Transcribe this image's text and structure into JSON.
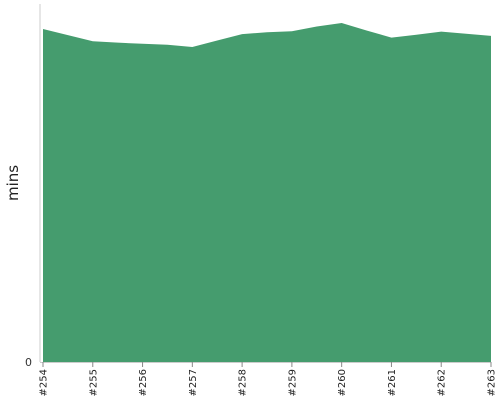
{
  "chart_data": {
    "type": "area",
    "title": "",
    "xlabel": "",
    "ylabel": "mins",
    "categories": [
      "#254",
      "#255",
      "#256",
      "#257",
      "#258",
      "#259",
      "#260",
      "#261",
      "#262",
      "#263"
    ],
    "x": [
      0,
      0.5,
      1,
      1.5,
      2,
      2.5,
      3,
      3.5,
      4,
      4.5,
      5,
      5.5,
      6,
      6.5,
      7,
      7.5,
      8,
      8.5,
      9
    ],
    "series": [
      {
        "values": [
          93.0,
          91.3,
          89.6,
          89.2,
          88.9,
          88.6,
          88.0,
          89.8,
          91.6,
          92.1,
          92.4,
          93.7,
          94.7,
          92.6,
          90.6,
          91.4,
          92.3,
          91.7,
          91.1
        ]
      }
    ],
    "ylim": [
      0,
      100
    ],
    "yticks": [
      0
    ],
    "grid": false,
    "legend": "none",
    "colors": {
      "fill": "#459c6e",
      "axis": "#cccccc",
      "tick": "#888888"
    }
  }
}
